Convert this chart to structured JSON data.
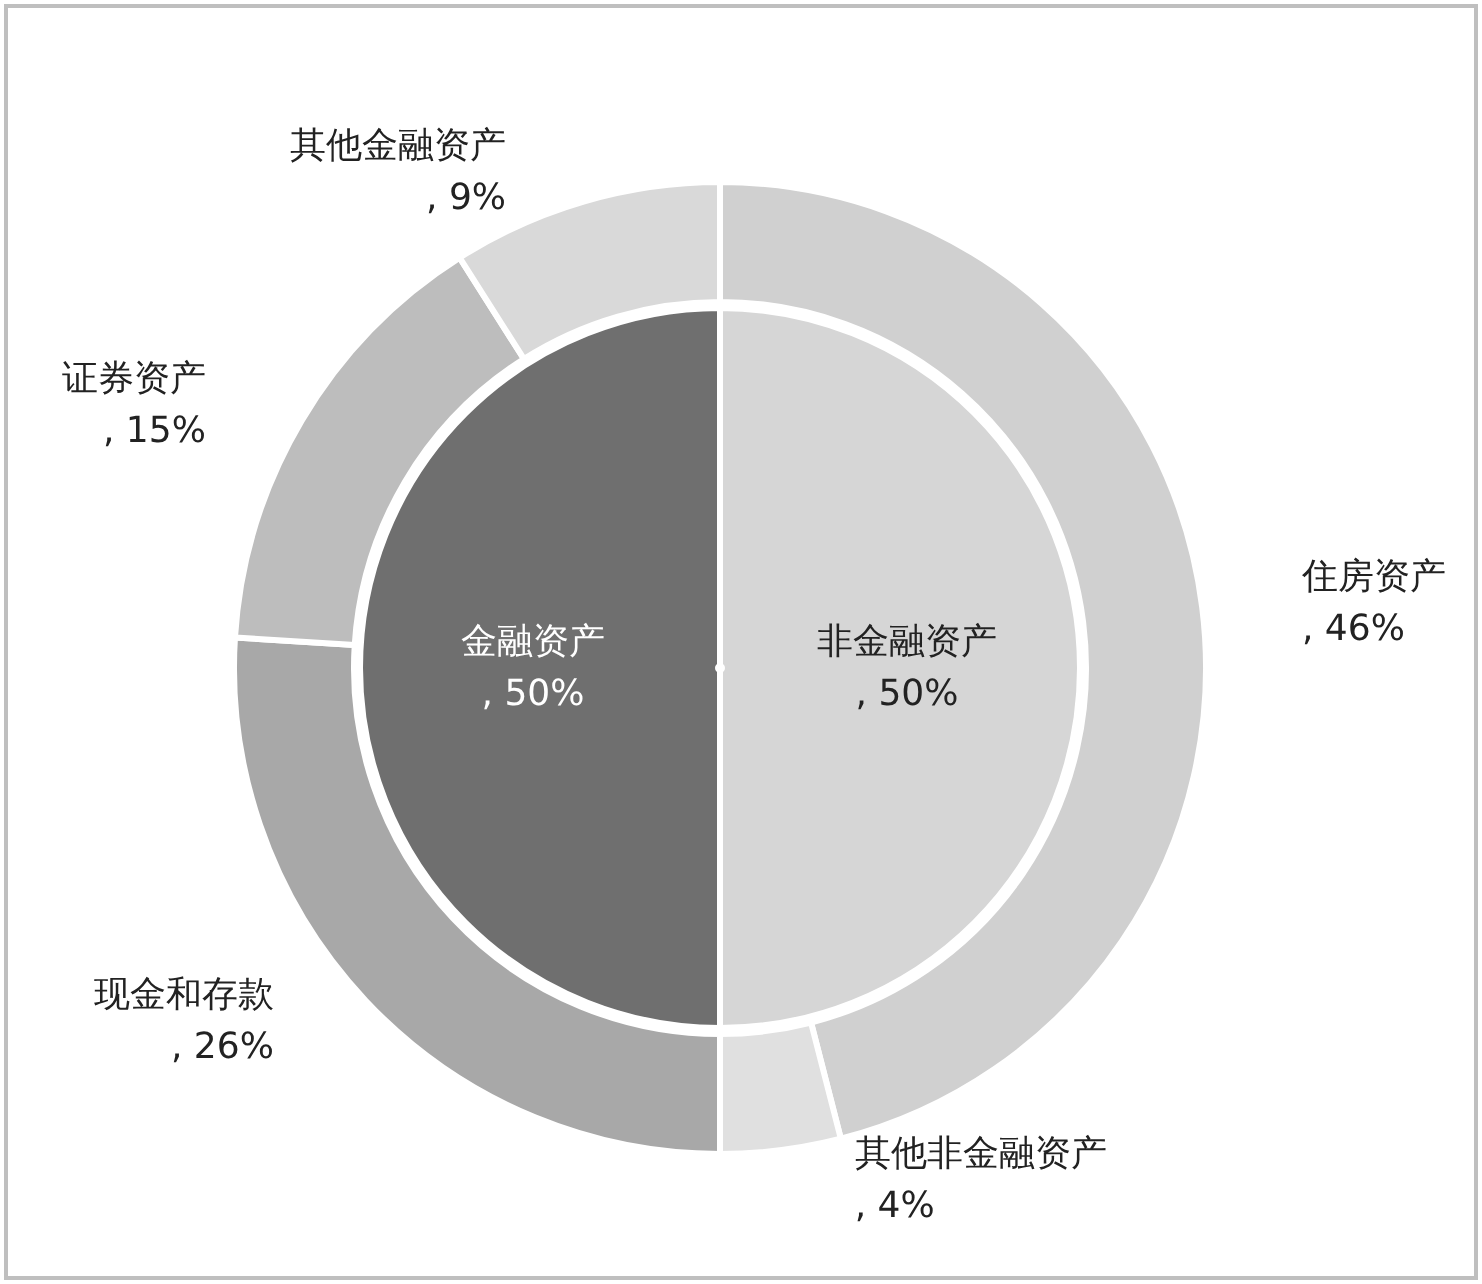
{
  "chart_data": [
    {
      "type": "pie",
      "categories": [
        "非金融资产",
        "金融资产"
      ],
      "values": [
        50,
        50
      ],
      "colors": [
        "#d6d6d6",
        "#6f6f6f"
      ],
      "value_labels": [
        ", 50%",
        ", 50%"
      ]
    },
    {
      "type": "donut",
      "categories": [
        "住房资产",
        "其他非金融资产",
        "现金和存款",
        "证券资产",
        "其他金融资产"
      ],
      "values": [
        46,
        4,
        26,
        15,
        9
      ],
      "colors": [
        "#d0d0d0",
        "#e0e0e0",
        "#a8a8a8",
        "#bdbdbd",
        "#d9d9d9"
      ],
      "value_labels": [
        ", 46%",
        ", 4%",
        ", 26%",
        ", 15%",
        ", 9%"
      ]
    }
  ]
}
